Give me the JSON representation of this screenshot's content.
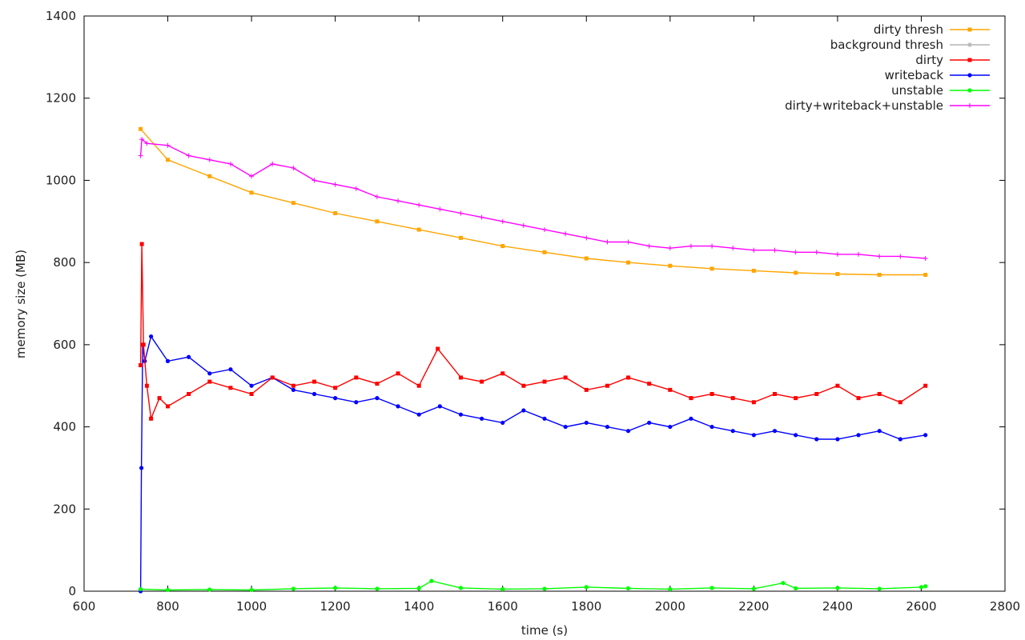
{
  "chart_data": {
    "type": "line",
    "title": "",
    "xlabel": "time (s)",
    "ylabel": "memory size (MB)",
    "xlim": [
      600,
      2800
    ],
    "ylim": [
      0,
      1400
    ],
    "xticks": [
      600,
      800,
      1000,
      1200,
      1400,
      1600,
      1800,
      2000,
      2200,
      2400,
      2600,
      2800
    ],
    "yticks": [
      0,
      200,
      400,
      600,
      800,
      1000,
      1200,
      1400
    ],
    "grid": false,
    "legend": "top-right",
    "series": [
      {
        "name": "dirty thresh",
        "color": "#ffa500",
        "marker": "square",
        "x": [
          735,
          800,
          900,
          1000,
          1100,
          1200,
          1300,
          1400,
          1500,
          1600,
          1700,
          1800,
          1900,
          2000,
          2100,
          2200,
          2300,
          2400,
          2500,
          2610
        ],
        "y": [
          1125,
          1050,
          1010,
          970,
          945,
          920,
          900,
          880,
          860,
          840,
          825,
          810,
          800,
          792,
          785,
          780,
          775,
          772,
          770,
          770
        ]
      },
      {
        "name": "background thresh",
        "color": "#b4b4b4",
        "marker": "star",
        "x": [],
        "y": []
      },
      {
        "name": "dirty",
        "color": "#ff0000",
        "marker": "square",
        "x": [
          735,
          738,
          742,
          750,
          760,
          780,
          800,
          850,
          900,
          950,
          1000,
          1050,
          1100,
          1150,
          1200,
          1250,
          1300,
          1350,
          1400,
          1445,
          1500,
          1550,
          1600,
          1650,
          1700,
          1750,
          1800,
          1850,
          1900,
          1950,
          2000,
          2050,
          2100,
          2150,
          2200,
          2250,
          2300,
          2350,
          2400,
          2450,
          2500,
          2550,
          2610
        ],
        "y": [
          550,
          845,
          600,
          500,
          420,
          470,
          450,
          480,
          510,
          495,
          480,
          520,
          500,
          510,
          495,
          520,
          505,
          530,
          500,
          590,
          520,
          510,
          530,
          500,
          510,
          520,
          490,
          500,
          520,
          505,
          490,
          470,
          480,
          470,
          460,
          480,
          470,
          480,
          500,
          470,
          480,
          460,
          500
        ]
      },
      {
        "name": "writeback",
        "color": "#0000ff",
        "marker": "circle",
        "x": [
          735,
          737,
          740,
          745,
          760,
          800,
          850,
          900,
          950,
          1000,
          1050,
          1100,
          1150,
          1200,
          1250,
          1300,
          1350,
          1400,
          1450,
          1500,
          1550,
          1600,
          1650,
          1700,
          1750,
          1800,
          1850,
          1900,
          1950,
          2000,
          2050,
          2100,
          2150,
          2200,
          2250,
          2300,
          2350,
          2400,
          2450,
          2500,
          2550,
          2610
        ],
        "y": [
          0,
          300,
          600,
          560,
          620,
          560,
          570,
          530,
          540,
          500,
          520,
          490,
          480,
          470,
          460,
          470,
          450,
          430,
          450,
          430,
          420,
          410,
          440,
          420,
          400,
          410,
          400,
          390,
          410,
          400,
          420,
          400,
          390,
          380,
          390,
          380,
          370,
          370,
          380,
          390,
          370,
          380
        ]
      },
      {
        "name": "unstable",
        "color": "#00ff00",
        "marker": "circle",
        "x": [
          735,
          800,
          900,
          1000,
          1100,
          1200,
          1300,
          1400,
          1430,
          1500,
          1600,
          1700,
          1800,
          1900,
          2000,
          2100,
          2200,
          2270,
          2300,
          2400,
          2500,
          2600,
          2610
        ],
        "y": [
          5,
          3,
          4,
          3,
          6,
          8,
          6,
          7,
          25,
          8,
          5,
          6,
          10,
          7,
          5,
          8,
          6,
          20,
          7,
          8,
          6,
          10,
          12
        ]
      },
      {
        "name": "dirty+writeback+unstable",
        "color": "#ff00ff",
        "marker": "plus",
        "x": [
          735,
          738,
          750,
          800,
          850,
          900,
          950,
          1000,
          1050,
          1100,
          1150,
          1200,
          1250,
          1300,
          1350,
          1400,
          1450,
          1500,
          1550,
          1600,
          1650,
          1700,
          1750,
          1800,
          1850,
          1900,
          1950,
          2000,
          2050,
          2100,
          2150,
          2200,
          2250,
          2300,
          2350,
          2400,
          2450,
          2500,
          2550,
          2610
        ],
        "y": [
          1060,
          1100,
          1090,
          1085,
          1060,
          1050,
          1040,
          1010,
          1040,
          1030,
          1000,
          990,
          980,
          960,
          950,
          940,
          930,
          920,
          910,
          900,
          890,
          880,
          870,
          860,
          850,
          850,
          840,
          835,
          840,
          840,
          835,
          830,
          830,
          825,
          825,
          820,
          820,
          815,
          815,
          810
        ]
      }
    ]
  }
}
